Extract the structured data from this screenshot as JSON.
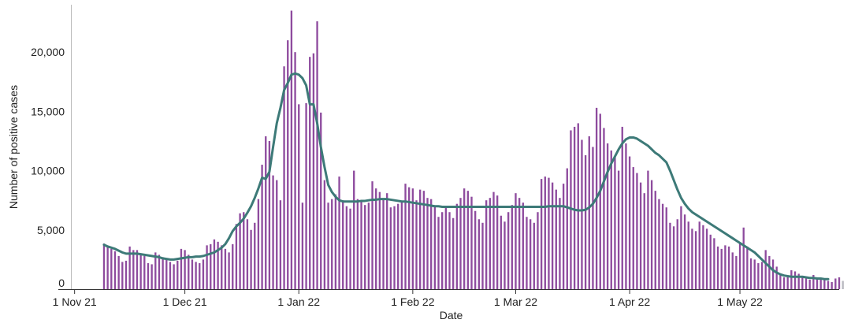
{
  "chart_data": {
    "type": "bar",
    "title": "",
    "xlabel": "Date",
    "ylabel": "Number of positive cases",
    "ylim": [
      0,
      24000
    ],
    "xlim": [
      "2021-10-31",
      "2022-05-28"
    ],
    "grid": false,
    "x_ticks": [
      {
        "date": "2021-11-01",
        "label": "1 Nov 21"
      },
      {
        "date": "2021-12-01",
        "label": "1 Dec 21"
      },
      {
        "date": "2022-01-01",
        "label": "1 Jan 22"
      },
      {
        "date": "2022-02-01",
        "label": "1 Feb 22"
      },
      {
        "date": "2022-03-01",
        "label": "1 Mar 22"
      },
      {
        "date": "2022-04-01",
        "label": "1 Apr 22"
      },
      {
        "date": "2022-05-01",
        "label": "1 May 22"
      }
    ],
    "y_ticks": [
      {
        "value": 0,
        "label": "0"
      },
      {
        "value": 5000,
        "label": "5,000"
      },
      {
        "value": 10000,
        "label": "10,000"
      },
      {
        "value": 15000,
        "label": "15,000"
      },
      {
        "value": 20000,
        "label": "20,000"
      }
    ],
    "series": [
      {
        "kind": "bar",
        "color": "#8e4b9e",
        "start_date": "2021-11-09",
        "values": [
          3850,
          3600,
          3400,
          3200,
          2800,
          2300,
          2400,
          3600,
          3300,
          3300,
          2900,
          2800,
          2200,
          2100,
          3100,
          2900,
          2700,
          2500,
          2300,
          2100,
          2400,
          3400,
          3300,
          2900,
          2500,
          2300,
          2200,
          2500,
          3700,
          3800,
          4200,
          4000,
          3700,
          3400,
          3100,
          3800,
          5500,
          6400,
          6500,
          5900,
          5000,
          5600,
          7600,
          10500,
          12900,
          12500,
          9600,
          9200,
          7500,
          18800,
          21000,
          23500,
          20000,
          15600,
          7300,
          15700,
          19600,
          19900,
          22600,
          14900,
          9200,
          7300,
          7600,
          8000,
          9500,
          7500,
          7000,
          6800,
          10000,
          7600,
          7400,
          7100,
          7300,
          9100,
          8500,
          8200,
          7600,
          8100,
          6900,
          7000,
          7200,
          7400,
          8900,
          8600,
          8500,
          7500,
          8400,
          8300,
          7700,
          7600,
          7000,
          6100,
          6500,
          6900,
          6500,
          6000,
          7200,
          7700,
          8500,
          8300,
          7800,
          6600,
          5900,
          5600,
          7500,
          7700,
          8200,
          7900,
          6200,
          5700,
          6500,
          7100,
          8100,
          7700,
          7300,
          6100,
          5900,
          5600,
          6500,
          9300,
          9500,
          9400,
          9000,
          8400,
          7700,
          8900,
          10200,
          13400,
          13700,
          14000,
          12600,
          11300,
          12900,
          12000,
          15300,
          14800,
          13600,
          12300,
          11700,
          11200,
          10000,
          13700,
          12300,
          11200,
          10300,
          9800,
          9000,
          8100,
          10000,
          9200,
          8300,
          7600,
          7200,
          6900,
          5600,
          5300,
          5900,
          7000,
          6300,
          5700,
          5100,
          4900,
          5700,
          5400,
          5100,
          4600,
          4300,
          3600,
          3400,
          3700,
          3600,
          3100,
          2800,
          3900,
          5200,
          3600,
          2600,
          2500,
          2200,
          2300,
          3300,
          2800,
          2500,
          1900,
          1300,
          1000,
          1100,
          1600,
          1500,
          1300,
          1000,
          900,
          800,
          1200,
          1000,
          900,
          800,
          700,
          600,
          900,
          1000,
          700
        ],
        "provisional_from_index": 201
      },
      {
        "kind": "line",
        "color": "#3d7a78",
        "start_date": "2021-11-09",
        "values": [
          3750,
          3600,
          3500,
          3400,
          3250,
          3100,
          3000,
          3000,
          3000,
          3000,
          2950,
          2900,
          2850,
          2800,
          2750,
          2700,
          2600,
          2550,
          2500,
          2500,
          2550,
          2600,
          2650,
          2700,
          2700,
          2750,
          2750,
          2800,
          2900,
          3000,
          3100,
          3300,
          3500,
          3800,
          4300,
          4900,
          5300,
          5600,
          5950,
          6450,
          7000,
          7700,
          8500,
          9400,
          9300,
          9900,
          12000,
          14000,
          15300,
          16800,
          17400,
          18100,
          18200,
          18100,
          17800,
          17200,
          15600,
          15600,
          14000,
          12000,
          10300,
          8800,
          8200,
          7800,
          7500,
          7400,
          7400,
          7400,
          7400,
          7400,
          7450,
          7450,
          7500,
          7550,
          7550,
          7600,
          7600,
          7600,
          7550,
          7500,
          7450,
          7400,
          7400,
          7350,
          7300,
          7250,
          7200,
          7150,
          7100,
          7050,
          7000,
          7000,
          6950,
          6950,
          6950,
          6950,
          6950,
          6950,
          6950,
          6950,
          6950,
          6950,
          6950,
          6950,
          6950,
          6950,
          6950,
          6950,
          6950,
          6950,
          6950,
          6950,
          6950,
          6950,
          6950,
          6950,
          6950,
          6950,
          6950,
          6950,
          6950,
          7000,
          7000,
          7000,
          7000,
          7000,
          6900,
          6800,
          6700,
          6650,
          6650,
          6700,
          6900,
          7200,
          7700,
          8300,
          9100,
          9900,
          10600,
          11200,
          11800,
          12300,
          12650,
          12800,
          12800,
          12700,
          12500,
          12300,
          12100,
          11800,
          11500,
          11300,
          11000,
          10700,
          10000,
          9200,
          8400,
          7700,
          7200,
          6800,
          6500,
          6300,
          6100,
          5900,
          5700,
          5500,
          5300,
          5100,
          4900,
          4700,
          4500,
          4300,
          4100,
          3900,
          3700,
          3500,
          3300,
          3100,
          2800,
          2500,
          2200,
          1900,
          1600,
          1400,
          1250,
          1150,
          1100,
          1050,
          1050,
          1050,
          1050,
          1000,
          950,
          950,
          900,
          900,
          850,
          850
        ]
      }
    ]
  }
}
